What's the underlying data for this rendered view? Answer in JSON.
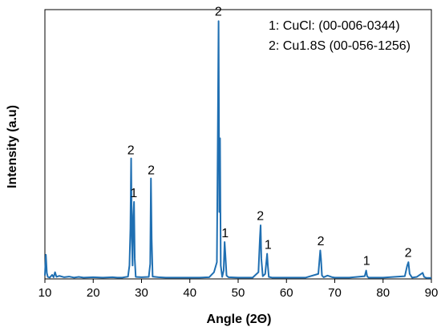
{
  "chart_data": {
    "type": "line",
    "xlabel": "Angle (2Θ)",
    "ylabel": "Intensity (a.u)",
    "xlim": [
      10,
      90
    ],
    "xticks": [
      10,
      20,
      30,
      40,
      50,
      60,
      70,
      80,
      90
    ],
    "yticks": [],
    "grid": false,
    "legend_placement": "top-right",
    "legend": [
      "1: CuCl: (00-006-0344)",
      "2: Cu1.8S (00-056-1256)"
    ],
    "series": [
      {
        "color": "#1f6fb2",
        "x": [
          10,
          10.2,
          10.4,
          10.6,
          11,
          11.5,
          11.8,
          12.1,
          12.4,
          13,
          14,
          15,
          16,
          17,
          18,
          20,
          22,
          24,
          25,
          26,
          27.2,
          27.5,
          27.7,
          27.85,
          28.0,
          28.15,
          28.3,
          28.45,
          28.6,
          28.8,
          30,
          31.5,
          31.8,
          31.95,
          32.1,
          32.3,
          33.5,
          35,
          38,
          42,
          44,
          45,
          45.6,
          45.8,
          45.95,
          46.1,
          46.25,
          46.4,
          46.7,
          47.0,
          47.2,
          47.35,
          47.6,
          48,
          50,
          53,
          54.2,
          54.5,
          54.65,
          54.8,
          55.1,
          55.6,
          56.0,
          56.15,
          56.35,
          57,
          60,
          64,
          66.6,
          67.0,
          67.15,
          67.35,
          67.7,
          68.5,
          69.5,
          70,
          73,
          76.2,
          76.5,
          76.7,
          77,
          80,
          84.5,
          85.0,
          85.25,
          85.5,
          86,
          87,
          88.2,
          88.5,
          89,
          90
        ],
        "values": [
          10,
          72,
          18,
          6,
          4,
          12,
          5,
          20,
          6,
          9,
          5,
          7,
          4,
          6,
          4,
          5,
          4,
          5,
          4,
          4,
          7,
          40,
          150,
          360,
          120,
          40,
          190,
          230,
          60,
          6,
          5,
          6,
          45,
          300,
          120,
          7,
          5,
          4,
          4,
          4,
          5,
          20,
          50,
          450,
          770,
          200,
          420,
          40,
          6,
          25,
          110,
          75,
          10,
          5,
          4,
          4,
          20,
          120,
          160,
          60,
          8,
          15,
          75,
          40,
          6,
          4,
          4,
          4,
          15,
          85,
          60,
          10,
          5,
          10,
          5,
          4,
          4,
          8,
          25,
          8,
          4,
          4,
          8,
          40,
          50,
          15,
          4,
          6,
          18,
          6,
          3,
          3
        ]
      }
    ],
    "peak_labels": [
      {
        "text": "2",
        "x": 27.8,
        "y": 372
      },
      {
        "text": "1",
        "x": 28.4,
        "y": 244
      },
      {
        "text": "2",
        "x": 32.0,
        "y": 312
      },
      {
        "text": "2",
        "x": 45.9,
        "y": 786
      },
      {
        "text": "1",
        "x": 47.3,
        "y": 124
      },
      {
        "text": "2",
        "x": 54.6,
        "y": 176
      },
      {
        "text": "1",
        "x": 56.2,
        "y": 90
      },
      {
        "text": "2",
        "x": 67.1,
        "y": 100
      },
      {
        "text": "1",
        "x": 76.6,
        "y": 42
      },
      {
        "text": "2",
        "x": 85.2,
        "y": 66
      }
    ]
  }
}
